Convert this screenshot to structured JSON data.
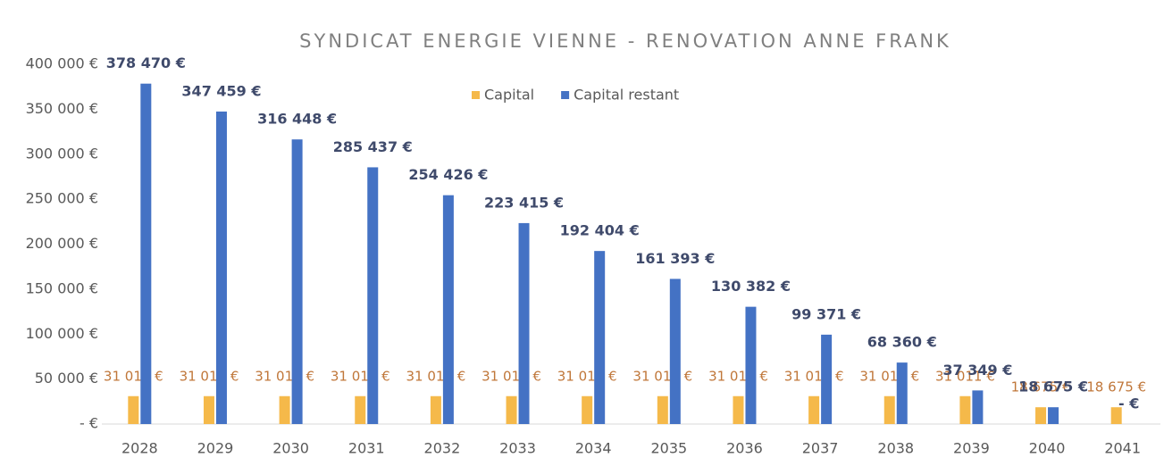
{
  "chart_data": {
    "type": "bar",
    "title": "SYNDICAT ENERGIE VIENNE - RENOVATION ANNE FRANK",
    "categories": [
      "2028",
      "2029",
      "2030",
      "2031",
      "2032",
      "2033",
      "2034",
      "2035",
      "2036",
      "2037",
      "2038",
      "2039",
      "2040",
      "2041"
    ],
    "series": [
      {
        "name": "Capital",
        "color": "#f5b94a",
        "values": [
          31011,
          31011,
          31011,
          31011,
          31011,
          31011,
          31011,
          31011,
          31011,
          31011,
          31011,
          31011,
          18675,
          18675
        ],
        "value_labels": [
          "31 011 €",
          "31 011 €",
          "31 011 €",
          "31 011 €",
          "31 011 €",
          "31 011 €",
          "31 011 €",
          "31 011 €",
          "31 011 €",
          "31 011 €",
          "31 011 €",
          "31 011 €",
          "18 675 €",
          "18 675 €"
        ]
      },
      {
        "name": "Capital restant",
        "color": "#4472c4",
        "values": [
          378470,
          347459,
          316448,
          285437,
          254426,
          223415,
          192404,
          161393,
          130382,
          99371,
          68360,
          37349,
          18675,
          0
        ],
        "value_labels": [
          "378 470 €",
          "347 459 €",
          "316 448 €",
          "285 437 €",
          "254 426 €",
          "223 415 €",
          "192 404 €",
          "161 393 €",
          "130 382 €",
          "99 371 €",
          "68 360 €",
          "37 349 €",
          "18 675 €",
          "- €"
        ]
      }
    ],
    "ylim": [
      0,
      400000
    ],
    "yticks": [
      {
        "value": 0,
        "label": "- €"
      },
      {
        "value": 50000,
        "label": "50 000 €"
      },
      {
        "value": 100000,
        "label": "100 000 €"
      },
      {
        "value": 150000,
        "label": "150 000 €"
      },
      {
        "value": 200000,
        "label": "200 000 €"
      },
      {
        "value": 250000,
        "label": "250 000 €"
      },
      {
        "value": 300000,
        "label": "300 000 €"
      },
      {
        "value": 350000,
        "label": "350 000 €"
      },
      {
        "value": 400000,
        "label": "400 000 €"
      }
    ],
    "grid": false
  }
}
